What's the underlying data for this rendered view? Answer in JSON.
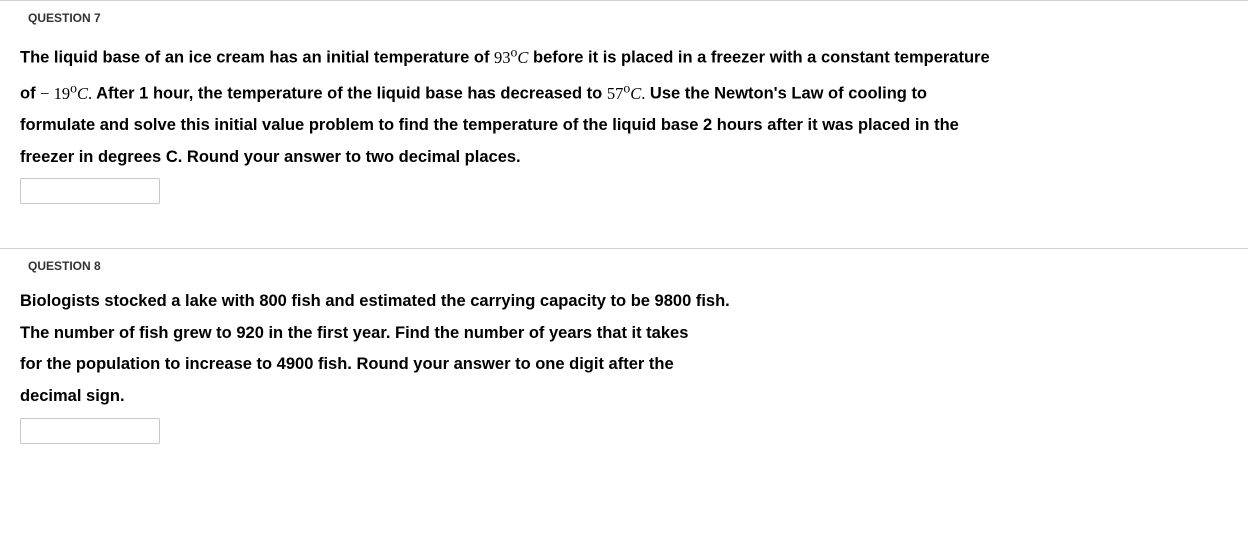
{
  "questions": [
    {
      "label": "QUESTION 7",
      "paragraphs": [
        {
          "parts": [
            {
              "t": "text",
              "v": "The liquid base of an ice cream has an initial temperature of  "
            },
            {
              "t": "math_expr",
              "num": "93",
              "unit_deg": "o",
              "unit_var": "C"
            },
            {
              "t": "text",
              "v": "  before it is placed in a freezer with a constant temperature"
            }
          ]
        },
        {
          "parts": [
            {
              "t": "text",
              "v": "of  "
            },
            {
              "t": "math_expr",
              "minus": "− ",
              "num": "19",
              "unit_deg": "o",
              "unit_var": "C",
              "period": "."
            },
            {
              "t": "text",
              "v": " After 1 hour, the temperature of the liquid base has decreased to  "
            },
            {
              "t": "math_expr",
              "num": "57",
              "unit_deg": "o",
              "unit_var": "C",
              "period": "."
            },
            {
              "t": "text",
              "v": " Use the Newton's Law of cooling to"
            }
          ]
        },
        {
          "parts": [
            {
              "t": "text",
              "v": "formulate and solve this initial value problem to find the temperature of the liquid base 2 hours after it was placed in the"
            }
          ]
        },
        {
          "parts": [
            {
              "t": "text",
              "v": "freezer in degrees C. Round your answer to two decimal places."
            }
          ]
        }
      ],
      "answer_value": ""
    },
    {
      "label": "QUESTION 8",
      "paragraphs": [
        {
          "parts": [
            {
              "t": "text",
              "v": "Biologists stocked a lake with 800 fish and estimated the carrying capacity to be 9800 fish."
            }
          ]
        },
        {
          "parts": [
            {
              "t": "text",
              "v": "The number of fish grew to 920 in the first year. Find the number of years that it takes"
            }
          ]
        },
        {
          "parts": [
            {
              "t": "text",
              "v": "for the population to increase to 4900 fish. Round your answer to one digit after the"
            }
          ]
        },
        {
          "parts": [
            {
              "t": "text",
              "v": "decimal sign."
            }
          ]
        }
      ],
      "answer_value": ""
    }
  ]
}
